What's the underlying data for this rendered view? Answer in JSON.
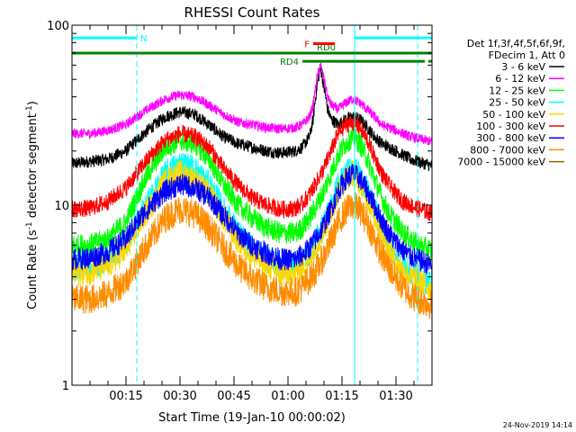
{
  "chart_data": {
    "type": "line",
    "title": "RHESSI Count Rates",
    "xlabel": "Start Time (19-Jan-10 00:00:02)",
    "ylabel_main": "Count Rate (s",
    "ylabel_sup1": "-1",
    "ylabel_mid": " detector segment",
    "ylabel_sup2": "-1",
    "ylabel_end": ")",
    "yscale": "log",
    "ylim": [
      1,
      100
    ],
    "xlim_minutes": [
      0,
      100
    ],
    "x_ticks": [
      {
        "m": 15,
        "label": "00:15"
      },
      {
        "m": 30,
        "label": "00:30"
      },
      {
        "m": 45,
        "label": "00:45"
      },
      {
        "m": 60,
        "label": "01:00"
      },
      {
        "m": 75,
        "label": "01:15"
      },
      {
        "m": 90,
        "label": "01:30"
      }
    ],
    "y_ticks": [
      {
        "v": 1,
        "label": "1"
      },
      {
        "v": 10,
        "label": "10"
      },
      {
        "v": 100,
        "label": "100"
      }
    ],
    "legend_header": [
      "Det 1f,3f,4f,5f,6f,9f,",
      "FDecim 1, Att 0"
    ],
    "series": [
      {
        "name": "3 - 6 keV",
        "color": "#000000",
        "x": [
          0,
          5,
          10,
          15,
          18,
          22,
          26,
          30,
          34,
          38,
          42,
          46,
          50,
          54,
          58,
          62,
          64,
          66,
          67,
          68,
          69,
          70,
          71,
          72,
          73,
          74,
          76,
          78,
          80,
          82,
          84,
          86,
          88,
          90,
          92,
          94,
          96,
          98,
          100
        ],
        "y": [
          17,
          17.5,
          18,
          20,
          23,
          27,
          31,
          33,
          32,
          28,
          24,
          22,
          21,
          20,
          19.5,
          20,
          21,
          24,
          30,
          45,
          58,
          45,
          34,
          30,
          29,
          28,
          30,
          31,
          30,
          27,
          24,
          22,
          21,
          20,
          19,
          18,
          17.5,
          17,
          16.5
        ]
      },
      {
        "name": "6 - 12 keV",
        "color": "#ff00ff",
        "x": [
          0,
          5,
          10,
          15,
          18,
          22,
          26,
          30,
          34,
          38,
          42,
          46,
          50,
          54,
          58,
          62,
          64,
          66,
          67,
          68,
          69,
          70,
          71,
          72,
          73,
          74,
          76,
          78,
          80,
          82,
          84,
          86,
          88,
          90,
          92,
          94,
          96,
          98,
          100
        ],
        "y": [
          25,
          25,
          26,
          28,
          31,
          35,
          39,
          41,
          40,
          36,
          32,
          29,
          28,
          27,
          26.5,
          27,
          28,
          31,
          36,
          50,
          60,
          50,
          40,
          36,
          35,
          34,
          37,
          39,
          37,
          34,
          31,
          28,
          27,
          26,
          25,
          24,
          23.5,
          23,
          22.5
        ]
      },
      {
        "name": "12 - 25 keV",
        "color": "#00ff00",
        "x": [
          0,
          5,
          10,
          15,
          18,
          22,
          26,
          30,
          34,
          38,
          42,
          46,
          50,
          54,
          58,
          62,
          64,
          66,
          68,
          70,
          72,
          74,
          76,
          78,
          80,
          82,
          84,
          86,
          88,
          90,
          92,
          94,
          96,
          98,
          100
        ],
        "y": [
          6,
          6,
          6.5,
          8,
          11,
          16,
          21,
          23,
          22,
          18,
          13,
          10,
          8.5,
          7.5,
          7,
          7,
          7.5,
          8.5,
          10,
          12,
          15,
          19,
          22,
          24,
          22,
          18,
          14,
          11,
          9,
          8,
          7,
          6.5,
          6,
          5.8,
          5.6
        ]
      },
      {
        "name": "25 - 50 keV",
        "color": "#00ffff",
        "x": [
          0,
          5,
          10,
          15,
          18,
          22,
          26,
          30,
          34,
          38,
          42,
          46,
          50,
          54,
          58,
          62,
          64,
          66,
          68,
          70,
          72,
          74,
          76,
          78,
          80,
          82,
          84,
          86,
          88,
          90,
          92,
          94,
          96,
          98,
          100
        ],
        "y": [
          4.5,
          4.6,
          5,
          6,
          8,
          11,
          15,
          17,
          16,
          13,
          9.5,
          7,
          5.8,
          5,
          4.6,
          4.6,
          4.9,
          5.5,
          6.5,
          8,
          10,
          13,
          15,
          16,
          14.5,
          12,
          9.5,
          7.5,
          6,
          5.2,
          4.6,
          4.3,
          4,
          3.8,
          3.6
        ]
      },
      {
        "name": "50 - 100 keV",
        "color": "#ffd700",
        "x": [
          0,
          5,
          10,
          15,
          18,
          22,
          26,
          30,
          34,
          38,
          42,
          46,
          50,
          54,
          58,
          62,
          64,
          66,
          68,
          70,
          72,
          74,
          76,
          78,
          80,
          82,
          84,
          86,
          88,
          90,
          92,
          94,
          96,
          98,
          100
        ],
        "y": [
          4.2,
          4.3,
          4.6,
          5.6,
          7.4,
          10,
          13.5,
          15,
          14,
          11.5,
          8.5,
          6.4,
          5.3,
          4.6,
          4.2,
          4.2,
          4.5,
          5.1,
          6,
          7.4,
          9.3,
          12,
          14,
          15,
          13.5,
          11,
          8.8,
          7,
          5.6,
          4.8,
          4.3,
          4,
          3.8,
          3.6,
          3.4
        ]
      },
      {
        "name": "100 - 300 keV",
        "color": "#ff0000",
        "x": [
          0,
          5,
          10,
          15,
          18,
          22,
          26,
          30,
          34,
          38,
          42,
          46,
          50,
          54,
          58,
          62,
          64,
          66,
          68,
          70,
          72,
          74,
          76,
          78,
          80,
          82,
          84,
          86,
          88,
          90,
          92,
          94,
          96,
          98,
          100
        ],
        "y": [
          9.5,
          9.6,
          10.5,
          12.5,
          15,
          19,
          23,
          25,
          24,
          21,
          16,
          13,
          11,
          10,
          9.5,
          9.6,
          10.2,
          11.5,
          13.5,
          16,
          20,
          25,
          28,
          29,
          27,
          23,
          18.5,
          15,
          13,
          11.5,
          10.5,
          10,
          9.6,
          9.3,
          9
        ]
      },
      {
        "name": "300 - 800 keV",
        "color": "#0000ff",
        "x": [
          0,
          5,
          10,
          15,
          18,
          22,
          26,
          30,
          34,
          38,
          42,
          46,
          50,
          54,
          58,
          62,
          64,
          66,
          68,
          70,
          72,
          74,
          76,
          78,
          80,
          82,
          84,
          86,
          88,
          90,
          92,
          94,
          96,
          98,
          100
        ],
        "y": [
          5,
          5.1,
          5.5,
          6.5,
          8,
          10,
          12,
          13,
          12.5,
          11,
          8.8,
          7,
          6,
          5.4,
          5,
          5,
          5.3,
          5.8,
          6.6,
          7.8,
          9.5,
          12,
          14,
          15,
          14,
          12,
          10,
          8.2,
          7,
          6.2,
          5.6,
          5.2,
          5,
          4.8,
          4.6
        ]
      },
      {
        "name": "800 - 7000 keV",
        "color": "#ff8c00",
        "x": [
          0,
          5,
          10,
          15,
          18,
          22,
          26,
          30,
          34,
          38,
          42,
          46,
          50,
          54,
          58,
          62,
          64,
          66,
          68,
          70,
          72,
          74,
          76,
          78,
          80,
          82,
          84,
          86,
          88,
          90,
          92,
          94,
          96,
          98,
          100
        ],
        "y": [
          3,
          3,
          3.2,
          3.8,
          4.8,
          6.5,
          8.5,
          9.5,
          9,
          7.5,
          5.8,
          4.6,
          3.9,
          3.5,
          3.3,
          3.3,
          3.5,
          3.9,
          4.4,
          5.2,
          6.4,
          8,
          9.3,
          10,
          9.4,
          8,
          6.5,
          5.3,
          4.5,
          3.9,
          3.5,
          3.2,
          3,
          2.9,
          2.8
        ]
      },
      {
        "name": "7000 - 15000 keV",
        "color": "#996600",
        "x": [],
        "y": []
      }
    ],
    "annotations": {
      "bars": [
        {
          "label": "N",
          "color": "#00ffff",
          "x0": 0,
          "x1": 18,
          "y": 85
        },
        {
          "label": "",
          "color": "#00ffff",
          "x0": 78.5,
          "x1": 100,
          "y": 85
        },
        {
          "label": "RD0",
          "color": "#008000",
          "x0": 0,
          "x1": 100,
          "y": 70
        },
        {
          "label": "RD4",
          "color": "#008000",
          "x0": 64,
          "x1": 98,
          "y": 63
        },
        {
          "label": "",
          "color": "#008000",
          "x0": 99,
          "x1": 100,
          "y": 63
        },
        {
          "label": "F",
          "color": "#ff0000",
          "x0": 67,
          "x1": 73,
          "y": 79
        }
      ],
      "vlines": [
        {
          "m": 18,
          "style": "dashed"
        },
        {
          "m": 78.5,
          "style": "solid"
        },
        {
          "m": 96,
          "style": "dashed"
        }
      ]
    },
    "grid": false,
    "legend_placement": "right"
  },
  "timestamp": "24-Nov-2019 14:14"
}
